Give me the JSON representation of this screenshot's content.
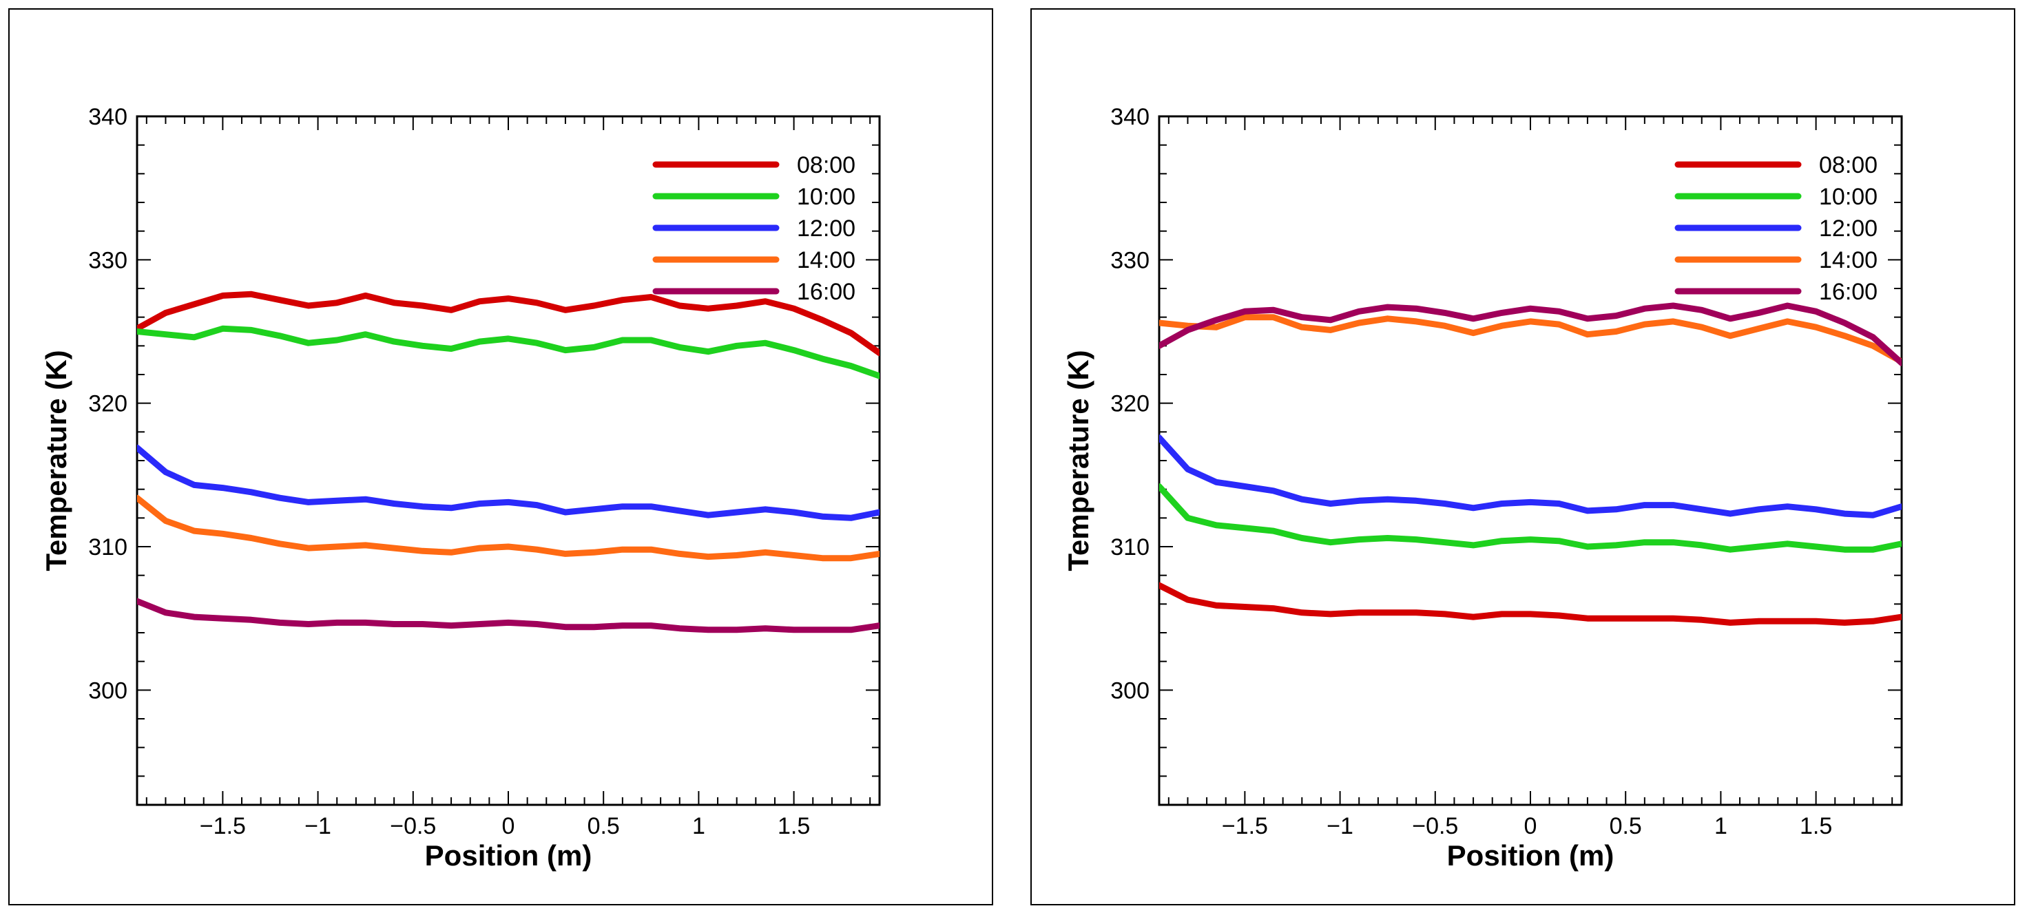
{
  "chart_data": [
    {
      "type": "line",
      "title": "",
      "xlabel": "Position (m)",
      "ylabel": "Temperature (K)",
      "xlim": [
        -1.95,
        1.95
      ],
      "ylim": [
        292,
        340
      ],
      "x_ticks": [
        -1.5,
        -1,
        -0.5,
        0,
        0.5,
        1,
        1.5
      ],
      "x_tick_labels": [
        "−1.5",
        "−1",
        "−0.5",
        "0",
        "0.5",
        "1",
        "1.5"
      ],
      "y_ticks": [
        300,
        310,
        320,
        330,
        340
      ],
      "y_tick_labels": [
        "300",
        "310",
        "320",
        "330",
        "340"
      ],
      "grid": false,
      "legend": "top-right",
      "x": [
        -1.95,
        -1.8,
        -1.65,
        -1.5,
        -1.35,
        -1.2,
        -1.05,
        -0.9,
        -0.75,
        -0.6,
        -0.45,
        -0.3,
        -0.15,
        0,
        0.15,
        0.3,
        0.45,
        0.6,
        0.75,
        0.9,
        1.05,
        1.2,
        1.35,
        1.5,
        1.65,
        1.8,
        1.95
      ],
      "series": [
        {
          "name": "08:00",
          "color": "#d40000",
          "values": [
            325.2,
            326.3,
            326.9,
            327.5,
            327.6,
            327.2,
            326.8,
            327.0,
            327.5,
            327.0,
            326.8,
            326.5,
            327.1,
            327.3,
            327.0,
            326.5,
            326.8,
            327.2,
            327.4,
            326.8,
            326.6,
            326.8,
            327.1,
            326.6,
            325.8,
            324.9,
            323.5
          ]
        },
        {
          "name": "10:00",
          "color": "#1ed11e",
          "values": [
            325.0,
            324.8,
            324.6,
            325.2,
            325.1,
            324.7,
            324.2,
            324.4,
            324.8,
            324.3,
            324.0,
            323.8,
            324.3,
            324.5,
            324.2,
            323.7,
            323.9,
            324.4,
            324.4,
            323.9,
            323.6,
            324.0,
            324.2,
            323.7,
            323.1,
            322.6,
            321.9
          ]
        },
        {
          "name": "12:00",
          "color": "#2a2afa",
          "values": [
            316.9,
            315.2,
            314.3,
            314.1,
            313.8,
            313.4,
            313.1,
            313.2,
            313.3,
            313.0,
            312.8,
            312.7,
            313.0,
            313.1,
            312.9,
            312.4,
            312.6,
            312.8,
            312.8,
            312.5,
            312.2,
            312.4,
            312.6,
            312.4,
            312.1,
            312.0,
            312.4
          ]
        },
        {
          "name": "14:00",
          "color": "#ff6a13",
          "values": [
            313.4,
            311.8,
            311.1,
            310.9,
            310.6,
            310.2,
            309.9,
            310.0,
            310.1,
            309.9,
            309.7,
            309.6,
            309.9,
            310.0,
            309.8,
            309.5,
            309.6,
            309.8,
            309.8,
            309.5,
            309.3,
            309.4,
            309.6,
            309.4,
            309.2,
            309.2,
            309.5
          ]
        },
        {
          "name": "16:00",
          "color": "#a0005a",
          "values": [
            306.2,
            305.4,
            305.1,
            305.0,
            304.9,
            304.7,
            304.6,
            304.7,
            304.7,
            304.6,
            304.6,
            304.5,
            304.6,
            304.7,
            304.6,
            304.4,
            304.4,
            304.5,
            304.5,
            304.3,
            304.2,
            304.2,
            304.3,
            304.2,
            304.2,
            304.2,
            304.5
          ]
        }
      ]
    },
    {
      "type": "line",
      "title": "",
      "xlabel": "Position (m)",
      "ylabel": "Temperature (K)",
      "xlim": [
        -1.95,
        1.95
      ],
      "ylim": [
        292,
        340
      ],
      "x_ticks": [
        -1.5,
        -1,
        -0.5,
        0,
        0.5,
        1,
        1.5
      ],
      "x_tick_labels": [
        "−1.5",
        "−1",
        "−0.5",
        "0",
        "0.5",
        "1",
        "1.5"
      ],
      "y_ticks": [
        300,
        310,
        320,
        330,
        340
      ],
      "y_tick_labels": [
        "300",
        "310",
        "320",
        "330",
        "340"
      ],
      "grid": false,
      "legend": "top-right",
      "x": [
        -1.95,
        -1.8,
        -1.65,
        -1.5,
        -1.35,
        -1.2,
        -1.05,
        -0.9,
        -0.75,
        -0.6,
        -0.45,
        -0.3,
        -0.15,
        0,
        0.15,
        0.3,
        0.45,
        0.6,
        0.75,
        0.9,
        1.05,
        1.2,
        1.35,
        1.5,
        1.65,
        1.8,
        1.95
      ],
      "series": [
        {
          "name": "08:00",
          "color": "#d40000",
          "values": [
            307.3,
            306.3,
            305.9,
            305.8,
            305.7,
            305.4,
            305.3,
            305.4,
            305.4,
            305.4,
            305.3,
            305.1,
            305.3,
            305.3,
            305.2,
            305.0,
            305.0,
            305.0,
            305.0,
            304.9,
            304.7,
            304.8,
            304.8,
            304.8,
            304.7,
            304.8,
            305.1
          ]
        },
        {
          "name": "10:00",
          "color": "#1ed11e",
          "values": [
            314.2,
            312.0,
            311.5,
            311.3,
            311.1,
            310.6,
            310.3,
            310.5,
            310.6,
            310.5,
            310.3,
            310.1,
            310.4,
            310.5,
            310.4,
            310.0,
            310.1,
            310.3,
            310.3,
            310.1,
            309.8,
            310.0,
            310.2,
            310.0,
            309.8,
            309.8,
            310.2
          ]
        },
        {
          "name": "12:00",
          "color": "#2a2afa",
          "values": [
            317.6,
            315.4,
            314.5,
            314.2,
            313.9,
            313.3,
            313.0,
            313.2,
            313.3,
            313.2,
            313.0,
            312.7,
            313.0,
            313.1,
            313.0,
            312.5,
            312.6,
            312.9,
            312.9,
            312.6,
            312.3,
            312.6,
            312.8,
            312.6,
            312.3,
            312.2,
            312.8
          ]
        },
        {
          "name": "14:00",
          "color": "#ff6a13",
          "values": [
            325.6,
            325.4,
            325.3,
            326.0,
            326.0,
            325.3,
            325.1,
            325.6,
            325.9,
            325.7,
            325.4,
            324.9,
            325.4,
            325.7,
            325.5,
            324.8,
            325.0,
            325.5,
            325.7,
            325.3,
            324.7,
            325.2,
            325.7,
            325.3,
            324.7,
            324.0,
            322.9
          ]
        },
        {
          "name": "16:00",
          "color": "#a0005a",
          "values": [
            324.0,
            325.1,
            325.8,
            326.4,
            326.5,
            326.0,
            325.8,
            326.4,
            326.7,
            326.6,
            326.3,
            325.9,
            326.3,
            326.6,
            326.4,
            325.9,
            326.1,
            326.6,
            326.8,
            326.5,
            325.9,
            326.3,
            326.8,
            326.4,
            325.6,
            324.6,
            322.8
          ]
        }
      ]
    }
  ]
}
